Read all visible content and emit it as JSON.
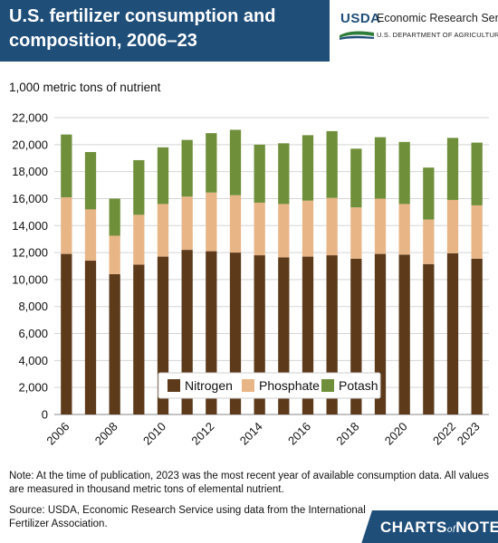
{
  "header": {
    "title": "U.S. fertilizer consumption and composition, 2006–23",
    "logo_text": "USDA",
    "agency": "Economic Research Service",
    "department": "U.S. DEPARTMENT OF AGRICULTURE"
  },
  "colors": {
    "nitrogen": "#5c3a1a",
    "phosphate": "#e8b587",
    "potash": "#6f8f3a",
    "header_bg": "#1f4e79"
  },
  "chart_data": {
    "type": "bar",
    "stacked": true,
    "ylabel": "1,000 metric tons of nutrient",
    "ylim": [
      0,
      22000
    ],
    "yticks": [
      "0",
      "2,000",
      "4,000",
      "6,000",
      "8,000",
      "10,000",
      "12,000",
      "14,000",
      "16,000",
      "18,000",
      "20,000",
      "22,000"
    ],
    "categories": [
      "2006",
      "2007",
      "2008",
      "2009",
      "2010",
      "2011",
      "2012",
      "2013",
      "2014",
      "2015",
      "2016",
      "2017",
      "2018",
      "2019",
      "2020",
      "2021",
      "2022",
      "2023"
    ],
    "xtick_labels": [
      "2006",
      "",
      "2008",
      "",
      "2010",
      "",
      "2012",
      "",
      "2014",
      "",
      "2016",
      "",
      "2018",
      "",
      "2020",
      "",
      "2022",
      "2023"
    ],
    "series": [
      {
        "name": "Nitrogen",
        "values": [
          11900,
          11400,
          10400,
          11100,
          11700,
          12200,
          12100,
          12000,
          11800,
          11650,
          11700,
          11800,
          11550,
          11900,
          11850,
          11150,
          11950,
          11550
        ]
      },
      {
        "name": "Phosphate",
        "values": [
          4200,
          3800,
          2850,
          3700,
          3900,
          3950,
          4350,
          4250,
          3900,
          3950,
          4150,
          4250,
          3800,
          4100,
          3750,
          3300,
          3950,
          3950
        ]
      },
      {
        "name": "Potash",
        "values": [
          4650,
          4250,
          2750,
          4050,
          4200,
          4200,
          4400,
          4850,
          4300,
          4500,
          4850,
          4950,
          4350,
          4550,
          4600,
          3850,
          4600,
          4650
        ]
      }
    ],
    "legend_position": "bottom-center",
    "grid": "horizontal"
  },
  "note": "Note: At the time of publication, 2023 was the most recent year of available consumption data. All values are measured in thousand metric tons of elemental nutrient.",
  "source": "Source: USDA, Economic Research Service using data from the International Fertilizer Association.",
  "footer": {
    "brand_left": "CHARTS",
    "brand_of": "of",
    "brand_right": "NOTE"
  }
}
